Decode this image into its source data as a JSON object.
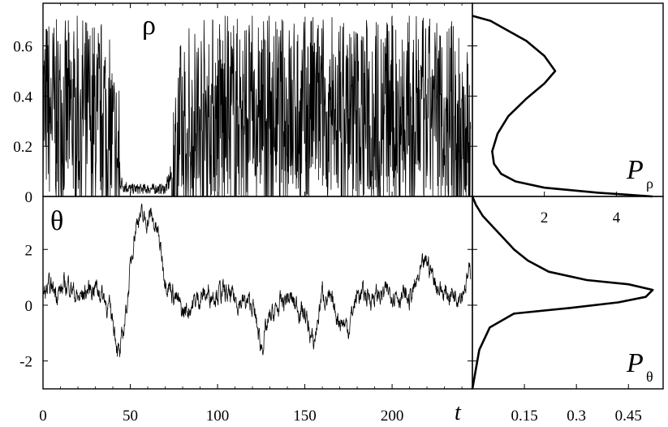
{
  "chart_data": [
    {
      "type": "line",
      "panel": "rho-timeseries",
      "label": "ρ",
      "x": [
        0,
        5,
        10,
        15,
        20,
        25,
        30,
        35,
        40,
        45,
        50,
        55,
        60,
        65,
        70,
        75,
        80,
        90,
        100,
        110,
        120,
        130,
        140,
        150,
        160,
        170,
        180,
        190,
        200,
        210,
        220,
        230,
        240,
        245
      ],
      "y": [
        0.35,
        0.35,
        0.32,
        0.34,
        0.36,
        0.35,
        0.33,
        0.35,
        0.2,
        0.05,
        0.03,
        0.03,
        0.03,
        0.03,
        0.03,
        0.1,
        0.3,
        0.35,
        0.36,
        0.35,
        0.36,
        0.35,
        0.34,
        0.35,
        0.36,
        0.35,
        0.34,
        0.35,
        0.36,
        0.35,
        0.34,
        0.35,
        0.3,
        0.2
      ],
      "y_fluctuation_range": [
        0,
        0.72
      ],
      "xlim": [
        0,
        246
      ],
      "ylim": [
        0,
        0.77
      ],
      "yticks": [
        "0",
        "0.2",
        "0.4",
        "0.6"
      ]
    },
    {
      "type": "line",
      "panel": "rho-distribution",
      "label": "P",
      "label_sub": "ρ",
      "x": [
        0.0,
        0.5,
        1.0,
        1.5,
        2.0,
        2.3,
        2.0,
        1.5,
        1.0,
        0.7,
        0.55,
        0.6,
        0.8,
        1.2,
        2.0,
        3.5,
        5.0
      ],
      "y": [
        0.72,
        0.7,
        0.66,
        0.62,
        0.56,
        0.5,
        0.45,
        0.39,
        0.32,
        0.25,
        0.18,
        0.13,
        0.09,
        0.06,
        0.035,
        0.015,
        0.0
      ],
      "xticks": [
        "2",
        "4"
      ],
      "xtick_values": [
        2,
        4
      ],
      "xlim": [
        0,
        5.3
      ]
    },
    {
      "type": "line",
      "panel": "theta-timeseries",
      "label": "θ",
      "x": [
        0,
        5,
        10,
        15,
        20,
        25,
        30,
        35,
        40,
        44,
        48,
        52,
        55,
        58,
        62,
        66,
        70,
        75,
        80,
        90,
        100,
        110,
        120,
        125,
        130,
        140,
        150,
        155,
        160,
        170,
        175,
        180,
        190,
        200,
        210,
        220,
        225,
        230,
        240,
        245
      ],
      "y": [
        0.4,
        0.6,
        0.5,
        0.8,
        0.2,
        0.5,
        0.7,
        0.3,
        -0.5,
        -1.9,
        0.0,
        2.5,
        3.3,
        3.0,
        3.2,
        2.5,
        1.0,
        0.4,
        -0.3,
        0.3,
        0.5,
        0.2,
        0.0,
        -1.5,
        -0.5,
        0.3,
        -0.3,
        -1.5,
        0.5,
        -0.5,
        -0.8,
        0.4,
        0.3,
        0.5,
        0.2,
        1.6,
        0.8,
        0.4,
        0.5,
        1.2
      ],
      "xticks": [
        "0",
        "50",
        "100",
        "150",
        "200"
      ],
      "xtick_values": [
        0,
        50,
        100,
        150,
        200
      ],
      "xlabel": "t",
      "xlim": [
        0,
        246
      ],
      "ylim": [
        -3,
        3.9
      ],
      "yticks": [
        "-2",
        "0",
        "2"
      ]
    },
    {
      "type": "line",
      "panel": "theta-distribution",
      "label": "P",
      "label_sub": "θ",
      "x": [
        0.0,
        0.01,
        0.03,
        0.06,
        0.09,
        0.12,
        0.16,
        0.22,
        0.33,
        0.45,
        0.52,
        0.5,
        0.42,
        0.28,
        0.12,
        0.05,
        0.02,
        0.0
      ],
      "y": [
        3.9,
        3.6,
        3.2,
        2.8,
        2.4,
        2.0,
        1.6,
        1.2,
        0.9,
        0.75,
        0.55,
        0.3,
        0.1,
        -0.1,
        -0.3,
        -0.8,
        -1.6,
        -3.0
      ],
      "xticks": [
        "0.15",
        "0.3",
        "0.45"
      ],
      "xtick_values": [
        0.15,
        0.3,
        0.45
      ],
      "xlim": [
        0,
        0.55
      ]
    }
  ]
}
